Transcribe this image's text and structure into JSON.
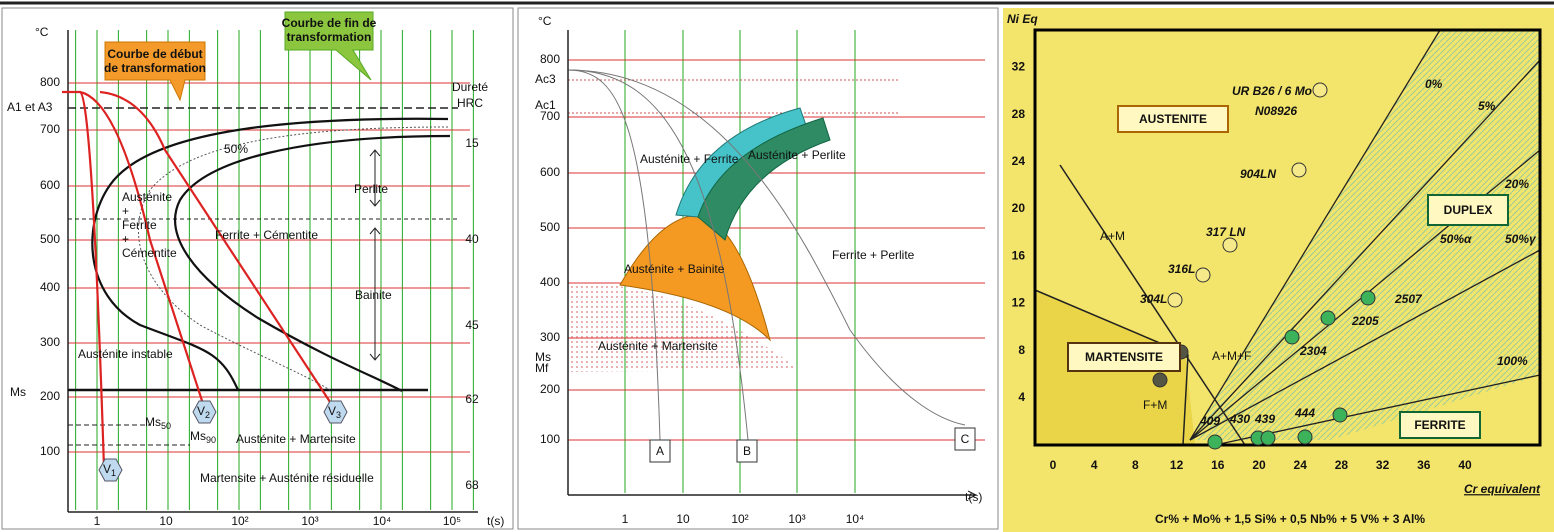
{
  "panel_ttt": {
    "unit": "°C",
    "callout_start": [
      "Courbe de début",
      "de transformation"
    ],
    "callout_end": [
      "Courbe de fin de",
      "transformation"
    ],
    "hardness_title": [
      "Dureté",
      "HRC"
    ],
    "hardness": [
      15,
      40,
      45,
      62,
      68
    ],
    "yticks": [
      800,
      700,
      600,
      500,
      400,
      300,
      200,
      100
    ],
    "xticks": [
      "1",
      "10",
      "10²",
      "10³",
      "10⁴",
      "10⁵"
    ],
    "xlabel": "t(s)",
    "a1a3": "A1 et A3",
    "ms": "Ms",
    "fifty": "50%",
    "region_afc": [
      "Austénite",
      "+",
      "Ferrite",
      "+",
      "Cémentite"
    ],
    "perlite": "Perlite",
    "ferrite_cementite": "Ferrite + Cémentite",
    "bainite": "Bainite",
    "austenite_instable": "Austénite instable",
    "ms50": {
      "base": "Ms",
      "sub": "50"
    },
    "ms90": {
      "base": "Ms",
      "sub": "90"
    },
    "v": [
      {
        "base": "V",
        "sub": "1"
      },
      {
        "base": "V",
        "sub": "2"
      },
      {
        "base": "V",
        "sub": "3"
      }
    ],
    "austenite_martensite": "Austénite + Martensite",
    "martensite_residual": "Martensite + Austénite résiduelle"
  },
  "panel_cct": {
    "unit": "°C",
    "yticks": [
      800,
      700,
      600,
      500,
      400,
      300,
      200,
      100
    ],
    "xticks": [
      "1",
      "10",
      "10²",
      "10³",
      "10⁴"
    ],
    "xlabel": "t(s)",
    "ac3": "Ac3",
    "ac1": "Ac1",
    "ms": "Ms",
    "mf": "Mf",
    "austenite_ferrite": "Austénite + Ferrite",
    "austenite_perlite": "Austénite + Perlite",
    "ferrite_perlite": "Ferrite + Perlite",
    "austenite_bainite": "Austénite + Bainite",
    "austenite_martensite": "Austénite + Martensite",
    "curves": [
      "A",
      "B",
      "C"
    ]
  },
  "panel_schaeffler": {
    "ylabel": "Ni Eq",
    "yticks": [
      32,
      28,
      24,
      20,
      16,
      12,
      8,
      4
    ],
    "xticks": [
      0,
      4,
      8,
      12,
      16,
      20,
      24,
      28,
      32,
      36,
      40
    ],
    "xlabel": "Cr equivalent",
    "formula": "Cr% + Mo% + 1,5 Si% + 0,5 Nb% + 5 V% + 3 Al%",
    "austenite": "AUSTENITE",
    "duplex": "DUPLEX",
    "martensite": "MARTENSITE",
    "ferrite": "FERRITE",
    "am": "A+M",
    "amf": "A+M+F",
    "fm": "F+M",
    "grades": [
      "UR B26 / 6 Mo",
      "N08926",
      "904LN",
      "317 LN",
      "316L",
      "304L",
      "2507",
      "2205",
      "2304",
      "409",
      "430",
      "439",
      "444"
    ],
    "ferrite_lines": [
      "0%",
      "5%",
      "20%",
      "50%α",
      "50%γ",
      "100%"
    ]
  }
}
